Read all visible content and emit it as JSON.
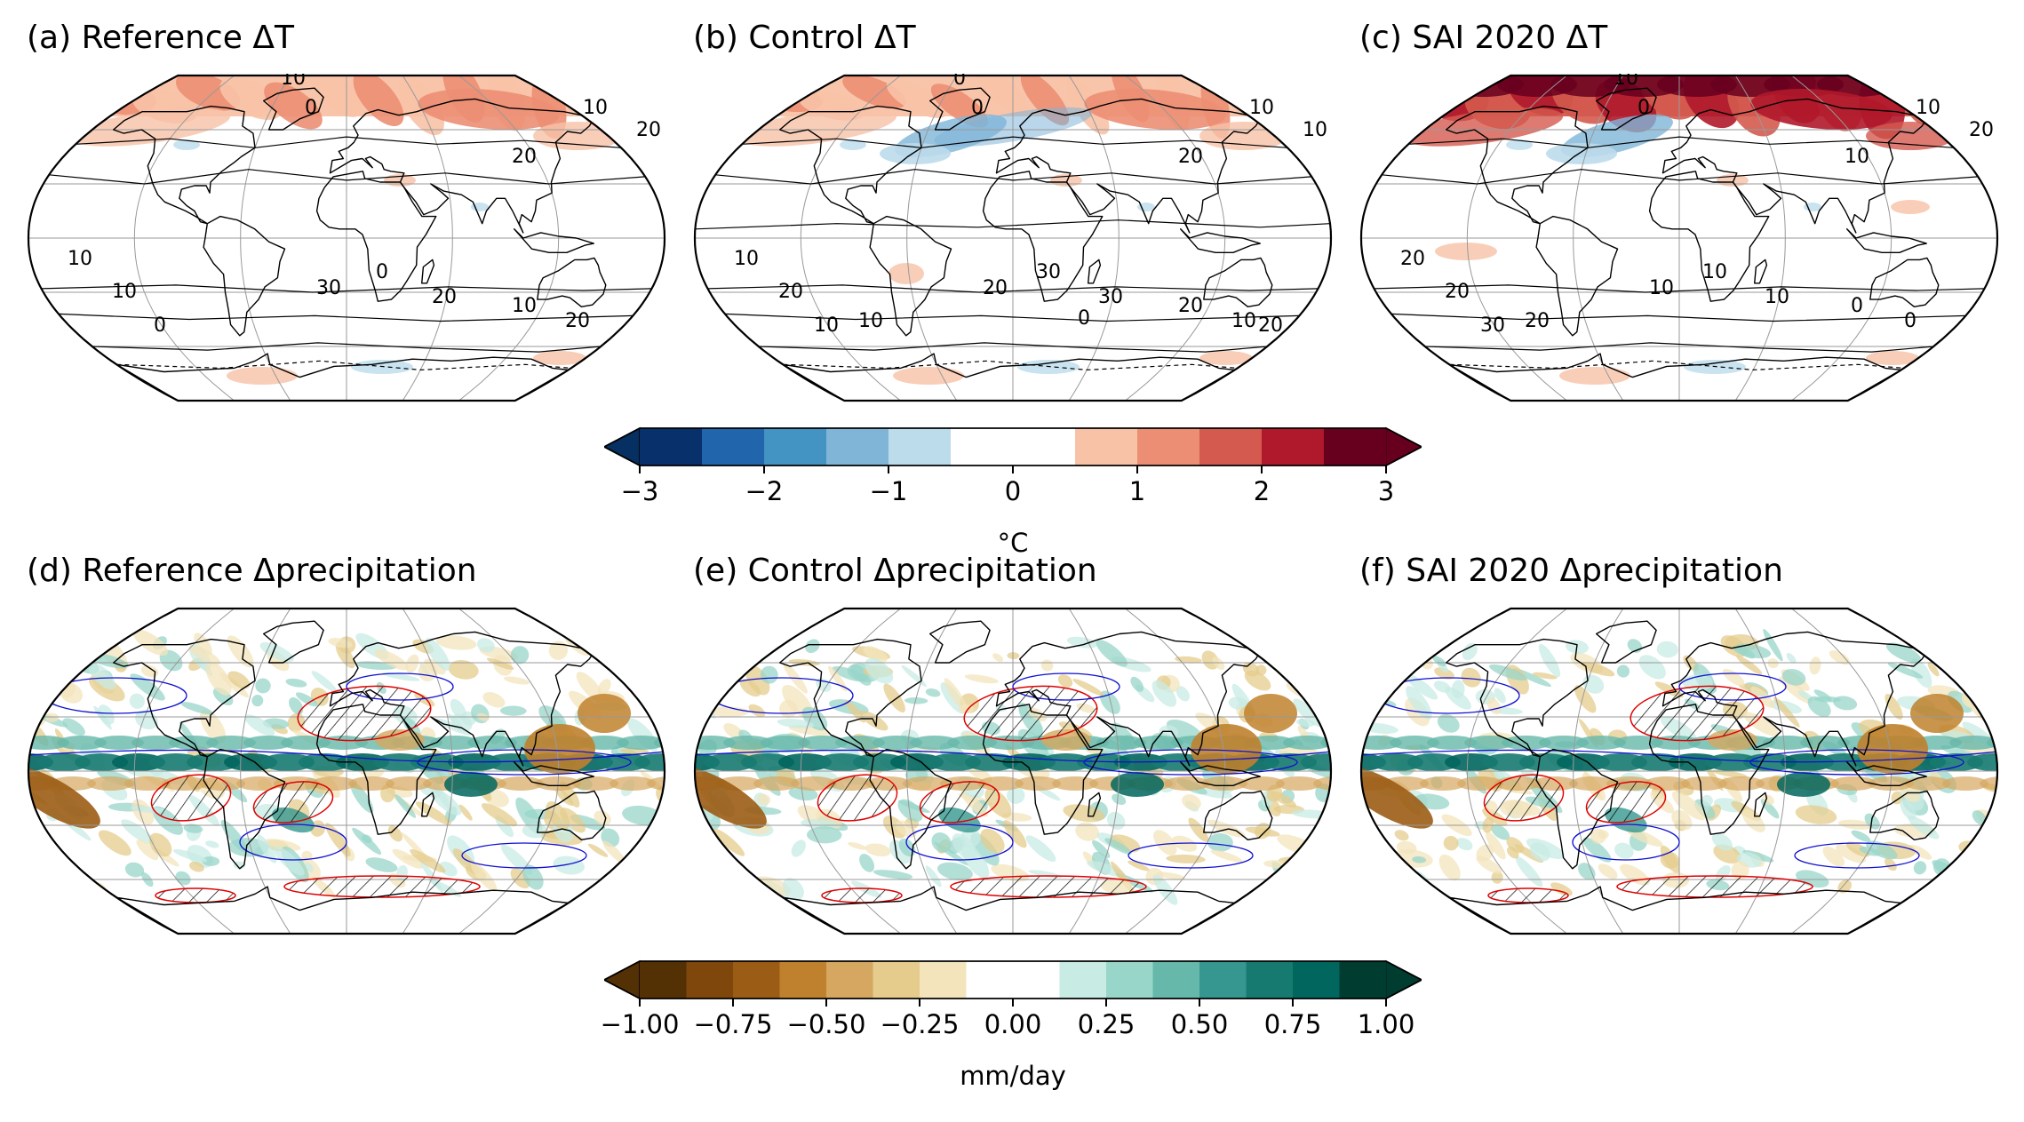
{
  "panels": [
    {
      "id": "a",
      "title": "(a) Reference ΔT",
      "variable": "temperature",
      "contour_labels": [
        "10",
        "0",
        "10",
        "20",
        "20",
        "10",
        "10",
        "0",
        "20",
        "10",
        "30",
        "0",
        "20"
      ]
    },
    {
      "id": "b",
      "title": "(b) Control ΔT",
      "variable": "temperature",
      "contour_labels": [
        "0",
        "0",
        "10",
        "10",
        "20",
        "10",
        "20",
        "30",
        "30",
        "20",
        "20",
        "10",
        "10",
        "10",
        "0",
        "20"
      ]
    },
    {
      "id": "c",
      "title": "(c) SAI 2020 ΔT",
      "variable": "temperature",
      "contour_labels": [
        "10",
        "0",
        "10",
        "20",
        "10",
        "20",
        "20",
        "10",
        "10",
        "0",
        "10",
        "30",
        "0",
        "20"
      ]
    },
    {
      "id": "d",
      "title": "(d) Reference Δprecipitation",
      "variable": "precipitation"
    },
    {
      "id": "e",
      "title": "(e) Control Δprecipitation",
      "variable": "precipitation"
    },
    {
      "id": "f",
      "title": "(f) SAI 2020 Δprecipitation",
      "variable": "precipitation"
    }
  ],
  "colorbars": {
    "temperature": {
      "unit": "°C",
      "ticks": [
        "−3",
        "−2",
        "−1",
        "0",
        "1",
        "2",
        "3"
      ],
      "tick_values": [
        -3,
        -2,
        -1,
        0,
        1,
        2,
        3
      ],
      "range": [
        -3,
        3
      ],
      "colors": [
        "#08306b",
        "#2166ac",
        "#4393c3",
        "#80b5d8",
        "#bcdcec",
        "#ffffff",
        "#ffffff",
        "#f8c2a7",
        "#ec8e73",
        "#d45a4f",
        "#b0182b",
        "#67001f"
      ],
      "extend_low": "#053061",
      "extend_high": "#67001f"
    },
    "precipitation": {
      "unit": "mm/day",
      "ticks": [
        "−1.00",
        "−0.75",
        "−0.50",
        "−0.25",
        "0.00",
        "0.25",
        "0.50",
        "0.75",
        "1.00"
      ],
      "tick_values": [
        -1,
        -0.75,
        -0.5,
        -0.25,
        0,
        0.25,
        0.5,
        0.75,
        1
      ],
      "range": [
        -1,
        1
      ],
      "colors": [
        "#543005",
        "#7f470c",
        "#9b5c15",
        "#bf812d",
        "#d5a760",
        "#e5cc8c",
        "#f3e4bc",
        "#ffffff",
        "#ffffff",
        "#c8ebe4",
        "#98d6c9",
        "#66b8aa",
        "#35978f",
        "#177a71",
        "#01665e",
        "#003c30"
      ],
      "extend_low": "#543005",
      "extend_high": "#003c30"
    }
  }
}
